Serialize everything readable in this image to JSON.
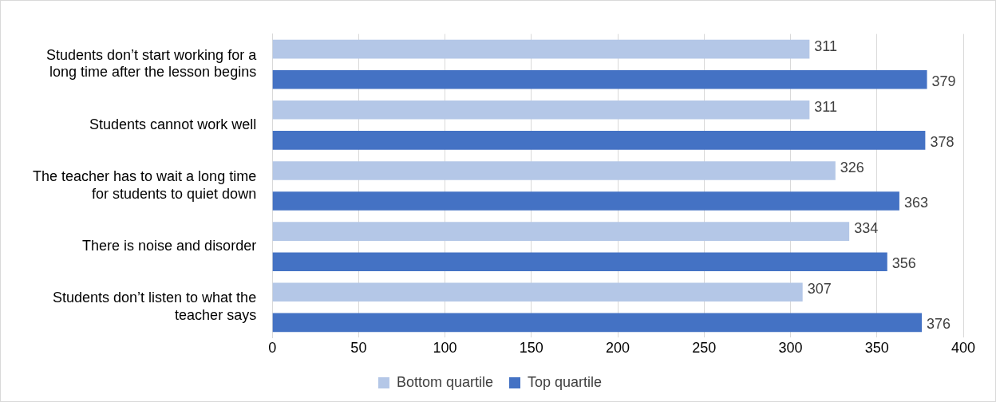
{
  "chart_data": {
    "type": "bar",
    "orientation": "horizontal",
    "categories": [
      "Students don’t start working for a long time after the lesson begins",
      "Students cannot work well",
      "The teacher has to wait a long time for students to quiet down",
      "There is noise and disorder",
      "Students don’t listen to what the teacher says"
    ],
    "series": [
      {
        "name": "Bottom quartile",
        "color": "#b4c7e7",
        "values": [
          311,
          311,
          326,
          334,
          307
        ]
      },
      {
        "name": "Top quartile",
        "color": "#4472c4",
        "values": [
          379,
          378,
          363,
          356,
          376
        ]
      }
    ],
    "xlim": [
      0,
      400
    ],
    "xticks": [
      0,
      50,
      100,
      150,
      200,
      250,
      300,
      350,
      400
    ],
    "grid": "x",
    "legend": "bottom",
    "data_labels": true
  }
}
